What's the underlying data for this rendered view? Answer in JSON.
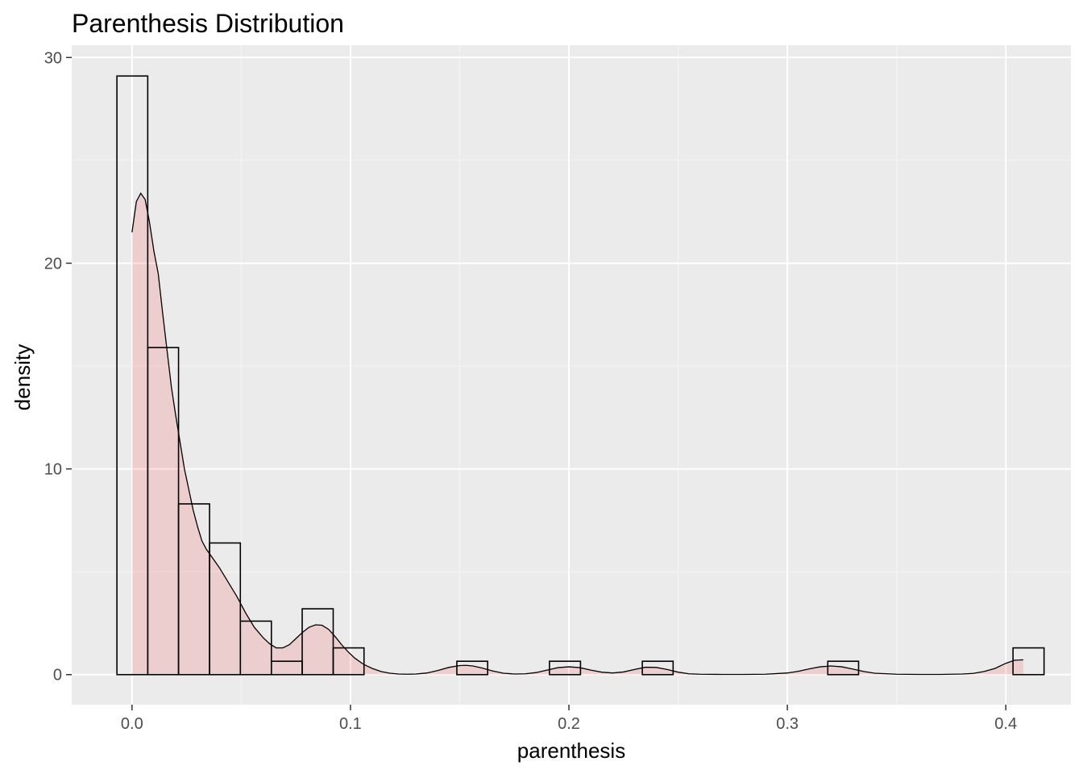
{
  "chart_data": {
    "type": "histogram",
    "title": "Parenthesis Distribution",
    "xlabel": "parenthesis",
    "ylabel": "density",
    "xlim": [
      -0.0276,
      0.4298
    ],
    "ylim": [
      -1.46,
      30.6
    ],
    "x_ticks": [
      {
        "value": 0.0,
        "label": "0.0"
      },
      {
        "value": 0.1,
        "label": "0.1"
      },
      {
        "value": 0.2,
        "label": "0.2"
      },
      {
        "value": 0.3,
        "label": "0.3"
      },
      {
        "value": 0.4,
        "label": "0.4"
      }
    ],
    "y_ticks": [
      {
        "value": 0,
        "label": "0"
      },
      {
        "value": 10,
        "label": "10"
      },
      {
        "value": 20,
        "label": "20"
      },
      {
        "value": 30,
        "label": "30"
      }
    ],
    "x_minor": [
      0.05,
      0.15,
      0.25,
      0.35
    ],
    "y_minor": [
      5,
      15,
      25
    ],
    "grid": true,
    "histogram": {
      "bin_width": 0.01414,
      "bins": [
        {
          "x0": -0.0069,
          "x1": 0.0072,
          "density": 29.1
        },
        {
          "x0": 0.0072,
          "x1": 0.0213,
          "density": 15.9
        },
        {
          "x0": 0.0213,
          "x1": 0.0355,
          "density": 8.3
        },
        {
          "x0": 0.0355,
          "x1": 0.0496,
          "density": 6.4
        },
        {
          "x0": 0.0496,
          "x1": 0.0638,
          "density": 2.6
        },
        {
          "x0": 0.0638,
          "x1": 0.0779,
          "density": 0.65
        },
        {
          "x0": 0.0779,
          "x1": 0.0921,
          "density": 3.2
        },
        {
          "x0": 0.0921,
          "x1": 0.1062,
          "density": 1.3
        },
        {
          "x0": 0.1487,
          "x1": 0.1628,
          "density": 0.65
        },
        {
          "x0": 0.1911,
          "x1": 0.2053,
          "density": 0.65
        },
        {
          "x0": 0.2336,
          "x1": 0.2477,
          "density": 0.65
        },
        {
          "x0": 0.3185,
          "x1": 0.3326,
          "density": 0.65
        },
        {
          "x0": 0.4033,
          "x1": 0.4175,
          "density": 1.3
        }
      ],
      "fill": "#ffffff",
      "stroke": "#000000"
    },
    "density_curve": {
      "x": [
        0.0,
        0.002,
        0.004,
        0.006,
        0.008,
        0.01,
        0.012,
        0.014,
        0.016,
        0.018,
        0.02,
        0.022,
        0.024,
        0.026,
        0.028,
        0.03,
        0.032,
        0.034,
        0.036,
        0.038,
        0.04,
        0.044,
        0.048,
        0.052,
        0.056,
        0.06,
        0.063,
        0.066,
        0.069,
        0.072,
        0.075,
        0.078,
        0.081,
        0.084,
        0.087,
        0.09,
        0.093,
        0.096,
        0.099,
        0.102,
        0.106,
        0.11,
        0.114,
        0.118,
        0.122,
        0.126,
        0.13,
        0.135,
        0.14,
        0.145,
        0.15,
        0.153,
        0.156,
        0.16,
        0.165,
        0.17,
        0.175,
        0.18,
        0.185,
        0.19,
        0.195,
        0.2,
        0.205,
        0.21,
        0.215,
        0.22,
        0.225,
        0.23,
        0.235,
        0.24,
        0.245,
        0.25,
        0.255,
        0.26,
        0.27,
        0.28,
        0.29,
        0.3,
        0.305,
        0.31,
        0.315,
        0.32,
        0.325,
        0.33,
        0.335,
        0.34,
        0.35,
        0.36,
        0.37,
        0.38,
        0.385,
        0.39,
        0.395,
        0.4,
        0.404,
        0.408
      ],
      "y": [
        21.5,
        23.0,
        23.4,
        23.1,
        22.0,
        20.6,
        19.5,
        17.6,
        15.8,
        14.0,
        12.6,
        11.3,
        10.0,
        9.0,
        8.0,
        7.2,
        6.5,
        6.1,
        5.8,
        5.5,
        5.2,
        4.5,
        3.8,
        3.0,
        2.3,
        1.8,
        1.5,
        1.3,
        1.3,
        1.45,
        1.75,
        2.05,
        2.3,
        2.42,
        2.4,
        2.2,
        1.85,
        1.45,
        1.1,
        0.8,
        0.5,
        0.3,
        0.15,
        0.07,
        0.03,
        0.02,
        0.03,
        0.08,
        0.2,
        0.35,
        0.44,
        0.45,
        0.42,
        0.33,
        0.18,
        0.07,
        0.03,
        0.04,
        0.1,
        0.22,
        0.34,
        0.38,
        0.34,
        0.22,
        0.12,
        0.08,
        0.13,
        0.25,
        0.36,
        0.35,
        0.25,
        0.12,
        0.04,
        0.02,
        0.01,
        0.01,
        0.02,
        0.08,
        0.16,
        0.28,
        0.38,
        0.42,
        0.38,
        0.27,
        0.15,
        0.07,
        0.02,
        0.01,
        0.01,
        0.03,
        0.06,
        0.15,
        0.3,
        0.55,
        0.7,
        0.72
      ],
      "fill": "#ff000026",
      "stroke": "#000000"
    }
  },
  "colors": {
    "panel": "#ebebeb",
    "grid_major": "#ffffff",
    "grid_minor": "#f5f5f5",
    "tick_mark": "#333333"
  }
}
